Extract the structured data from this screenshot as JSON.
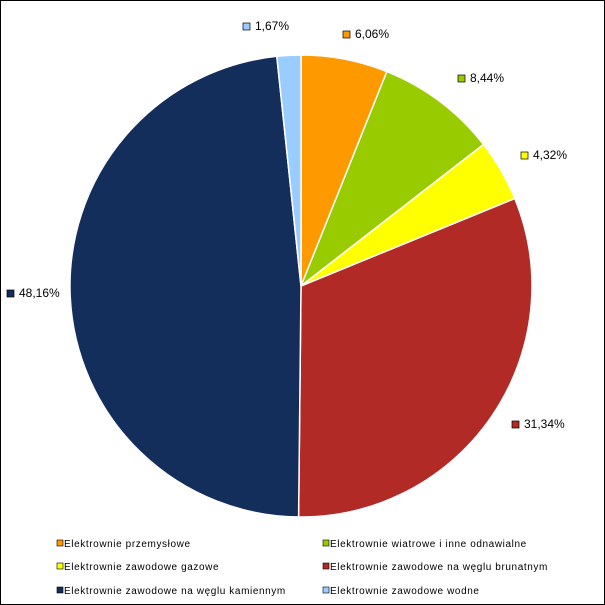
{
  "chart_data": {
    "type": "pie",
    "title": "",
    "legend_position": "bottom",
    "slices": [
      {
        "name": "Elektrownie przemysłowe",
        "value": 6.06,
        "label": "6,06%",
        "color": "#ff9900"
      },
      {
        "name": "Elektrownie wiatrowe i inne odnawialne",
        "value": 8.44,
        "label": "8,44%",
        "color": "#99cc00"
      },
      {
        "name": "Elektrownie zawodowe gazowe",
        "value": 4.32,
        "label": "4,32%",
        "color": "#ffff00"
      },
      {
        "name": "Elektrownie zawodowe na węglu brunatnym",
        "value": 31.34,
        "label": "31,34%",
        "color": "#b22a25"
      },
      {
        "name": "Elektrownie zawodowe na węglu kamiennym",
        "value": 48.16,
        "label": "48,16%",
        "color": "#142e5c"
      },
      {
        "name": "Elektrownie zawodowe wodne",
        "value": 1.67,
        "label": "1,67%",
        "color": "#99ccff"
      }
    ]
  }
}
